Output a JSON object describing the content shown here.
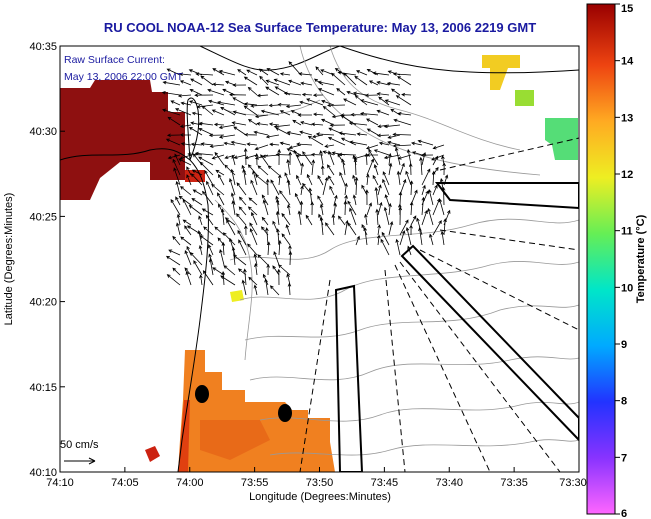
{
  "chart_data": {
    "type": "heatmap",
    "title": "RU COOL  NOAA-12  Sea Surface Temperature:  May 13, 2006 2219 GMT",
    "xlabel": "Longitude (Degrees:Minutes)",
    "ylabel": "Latitude (Degrees:Minutes)",
    "x_ticks": [
      "74:10",
      "74:05",
      "74:00",
      "73:55",
      "73:50",
      "73:45",
      "73:40",
      "73:35",
      "73:30"
    ],
    "y_ticks": [
      "40:10",
      "40:15",
      "40:20",
      "40:25",
      "40:30",
      "40:35"
    ],
    "xlim": [
      -74.1667,
      -73.5
    ],
    "ylim": [
      40.1667,
      40.5833
    ],
    "annotations": {
      "current_line1": "Raw Surface Current:",
      "current_line2": "May 13, 2006 22:00 GMT",
      "scale_label": "50 cm/s"
    },
    "colorbar": {
      "label": "Temperature (°C)",
      "ticks": [
        "6",
        "7",
        "8",
        "9",
        "10",
        "11",
        "12",
        "13",
        "14",
        "15"
      ],
      "range": [
        6,
        15
      ]
    },
    "sst_patches": [
      {
        "name": "nw-warm-patch",
        "temp_c": 14.8
      },
      {
        "name": "sw-patch",
        "temp_c": 13.0
      },
      {
        "name": "ne-yellow-patch",
        "temp_c": 12.0
      },
      {
        "name": "ne-green-patch",
        "temp_c": 10.5
      }
    ],
    "markers": [
      {
        "name": "station-1",
        "lon": -73.9833,
        "lat": 40.245
      },
      {
        "name": "station-2",
        "lon": -73.9083,
        "lat": 40.2283
      }
    ],
    "colors": {
      "title": "#1a1aa0",
      "vectors": "#000000",
      "bathymetry": "#999999"
    }
  }
}
